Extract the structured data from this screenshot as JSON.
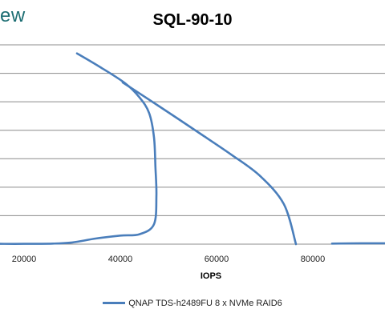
{
  "header": {
    "logo_fragment": "ew"
  },
  "chart_data": {
    "type": "line",
    "title": "SQL-90-10",
    "xlabel": "IOPS",
    "ylabel": "",
    "xlim": [
      15000,
      95000
    ],
    "ylim": [
      0,
      7000
    ],
    "x_ticks": [
      20000,
      40000,
      60000,
      80000
    ],
    "x_tick_labels": [
      "20000",
      "40000",
      "60000",
      "80000"
    ],
    "grid": true,
    "legend_position": "bottom",
    "series": [
      {
        "name": "QNAP TDS-h2489FU 8 x NVMe RAID6",
        "color": "#4a7ebb",
        "points": [
          [
            31000,
            6700
          ],
          [
            36000,
            6200
          ],
          [
            41000,
            5650
          ],
          [
            44000,
            5150
          ],
          [
            46000,
            4600
          ],
          [
            47000,
            3750
          ],
          [
            47300,
            2700
          ],
          [
            47500,
            1700
          ],
          [
            47000,
            700
          ],
          [
            44000,
            350
          ],
          [
            40000,
            300
          ],
          [
            35000,
            200
          ],
          [
            30000,
            60
          ],
          [
            26000,
            20
          ],
          [
            20000,
            10
          ],
          [
            15000,
            10
          ]
        ]
      },
      {
        "name": "",
        "color": "#4a7ebb",
        "points": [
          [
            40500,
            5680
          ],
          [
            48000,
            4850
          ],
          [
            56000,
            3950
          ],
          [
            63000,
            3150
          ],
          [
            69000,
            2400
          ],
          [
            74000,
            1400
          ],
          [
            76500,
            0
          ]
        ]
      },
      {
        "name": "",
        "color": "#4a7ebb",
        "points": [
          [
            84000,
            20
          ],
          [
            90000,
            30
          ],
          [
            95000,
            30
          ]
        ]
      }
    ]
  }
}
